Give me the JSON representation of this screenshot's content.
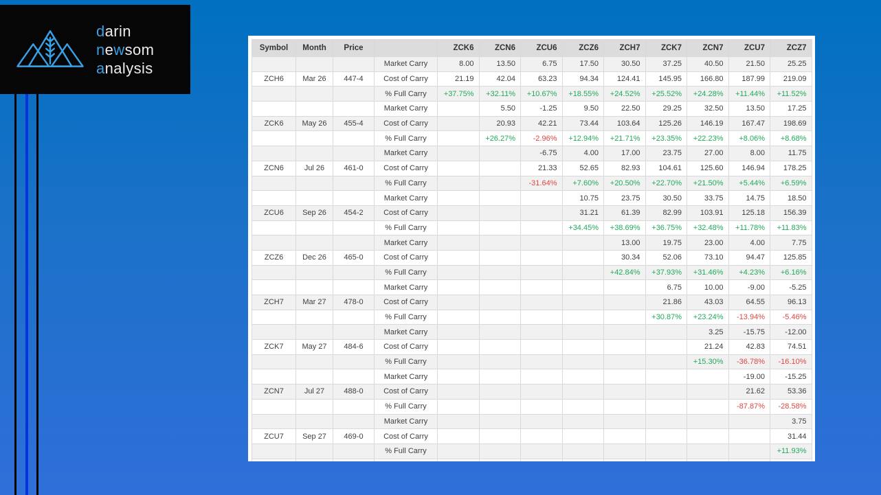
{
  "palette": {
    "positive": "#22aa5a",
    "negative": "#dd4641",
    "logo_accent": "#3aa0e4",
    "stripe_line_blue": "#0433df",
    "background_top": "#0070c0",
    "background_bottom": "#2f6fd9"
  },
  "logo": {
    "lines": [
      [
        {
          "t": "d",
          "a": 1
        },
        {
          "t": "arin",
          "a": 0
        }
      ],
      [
        {
          "t": "n",
          "a": 1
        },
        {
          "t": "e",
          "a": 0
        },
        {
          "t": "w",
          "a": 1
        },
        {
          "t": "som",
          "a": 0
        }
      ],
      [
        {
          "t": "a",
          "a": 1
        },
        {
          "t": "nalysis",
          "a": 0
        }
      ]
    ],
    "mark": "mountains-wheat-icon"
  },
  "chart_data": {
    "type": "table",
    "columns": [
      "Symbol",
      "Month",
      "Price",
      "",
      "ZCK6",
      "ZCN6",
      "ZCU6",
      "ZCZ6",
      "ZCH7",
      "ZCK7",
      "ZCN7",
      "ZCU7",
      "ZCZ7"
    ],
    "row_labels": [
      "Market Carry",
      "Cost of Carry",
      "% Full Carry"
    ],
    "groups": [
      {
        "symbol": "ZCH6",
        "month": "Mar 26",
        "price": "447-4",
        "market": [
          "8.00",
          "13.50",
          "6.75",
          "17.50",
          "30.50",
          "37.25",
          "40.50",
          "21.50",
          "25.25"
        ],
        "cost": [
          "21.19",
          "42.04",
          "63.23",
          "94.34",
          "124.41",
          "145.95",
          "166.80",
          "187.99",
          "219.09"
        ],
        "pct": [
          "+37.75%",
          "+32.11%",
          "+10.67%",
          "+18.55%",
          "+24.52%",
          "+25.52%",
          "+24.28%",
          "+11.44%",
          "+11.52%"
        ]
      },
      {
        "symbol": "ZCK6",
        "month": "May 26",
        "price": "455-4",
        "market": [
          "",
          "5.50",
          "-1.25",
          "9.50",
          "22.50",
          "29.25",
          "32.50",
          "13.50",
          "17.25"
        ],
        "cost": [
          "",
          "20.93",
          "42.21",
          "73.44",
          "103.64",
          "125.26",
          "146.19",
          "167.47",
          "198.69"
        ],
        "pct": [
          "",
          "+26.27%",
          "-2.96%",
          "+12.94%",
          "+21.71%",
          "+23.35%",
          "+22.23%",
          "+8.06%",
          "+8.68%"
        ]
      },
      {
        "symbol": "ZCN6",
        "month": "Jul 26",
        "price": "461-0",
        "market": [
          "",
          "",
          "-6.75",
          "4.00",
          "17.00",
          "23.75",
          "27.00",
          "8.00",
          "11.75"
        ],
        "cost": [
          "",
          "",
          "21.33",
          "52.65",
          "82.93",
          "104.61",
          "125.60",
          "146.94",
          "178.25"
        ],
        "pct": [
          "",
          "",
          "-31.64%",
          "+7.60%",
          "+20.50%",
          "+22.70%",
          "+21.50%",
          "+5.44%",
          "+6.59%"
        ]
      },
      {
        "symbol": "ZCU6",
        "month": "Sep 26",
        "price": "454-2",
        "market": [
          "",
          "",
          "",
          "10.75",
          "23.75",
          "30.50",
          "33.75",
          "14.75",
          "18.50"
        ],
        "cost": [
          "",
          "",
          "",
          "31.21",
          "61.39",
          "82.99",
          "103.91",
          "125.18",
          "156.39"
        ],
        "pct": [
          "",
          "",
          "",
          "+34.45%",
          "+38.69%",
          "+36.75%",
          "+32.48%",
          "+11.78%",
          "+11.83%"
        ]
      },
      {
        "symbol": "ZCZ6",
        "month": "Dec 26",
        "price": "465-0",
        "market": [
          "",
          "",
          "",
          "",
          "13.00",
          "19.75",
          "23.00",
          "4.00",
          "7.75"
        ],
        "cost": [
          "",
          "",
          "",
          "",
          "30.34",
          "52.06",
          "73.10",
          "94.47",
          "125.85"
        ],
        "pct": [
          "",
          "",
          "",
          "",
          "+42.84%",
          "+37.93%",
          "+31.46%",
          "+4.23%",
          "+6.16%"
        ]
      },
      {
        "symbol": "ZCH7",
        "month": "Mar 27",
        "price": "478-0",
        "market": [
          "",
          "",
          "",
          "",
          "",
          "6.75",
          "10.00",
          "-9.00",
          "-5.25"
        ],
        "cost": [
          "",
          "",
          "",
          "",
          "",
          "21.86",
          "43.03",
          "64.55",
          "96.13"
        ],
        "pct": [
          "",
          "",
          "",
          "",
          "",
          "+30.87%",
          "+23.24%",
          "-13.94%",
          "-5.46%"
        ]
      },
      {
        "symbol": "ZCK7",
        "month": "May 27",
        "price": "484-6",
        "market": [
          "",
          "",
          "",
          "",
          "",
          "",
          "3.25",
          "-15.75",
          "-12.00"
        ],
        "cost": [
          "",
          "",
          "",
          "",
          "",
          "",
          "21.24",
          "42.83",
          "74.51"
        ],
        "pct": [
          "",
          "",
          "",
          "",
          "",
          "",
          "+15.30%",
          "-36.78%",
          "-16.10%"
        ]
      },
      {
        "symbol": "ZCN7",
        "month": "Jul 27",
        "price": "488-0",
        "market": [
          "",
          "",
          "",
          "",
          "",
          "",
          "",
          "-19.00",
          "-15.25"
        ],
        "cost": [
          "",
          "",
          "",
          "",
          "",
          "",
          "",
          "21.62",
          "53.36"
        ],
        "pct": [
          "",
          "",
          "",
          "",
          "",
          "",
          "",
          "-87.87%",
          "-28.58%"
        ]
      },
      {
        "symbol": "ZCU7",
        "month": "Sep 27",
        "price": "469-0",
        "market": [
          "",
          "",
          "",
          "",
          "",
          "",
          "",
          "",
          "3.75"
        ],
        "cost": [
          "",
          "",
          "",
          "",
          "",
          "",
          "",
          "",
          "31.44"
        ],
        "pct": [
          "",
          "",
          "",
          "",
          "",
          "",
          "",
          "",
          "+11.93%"
        ]
      }
    ]
  }
}
